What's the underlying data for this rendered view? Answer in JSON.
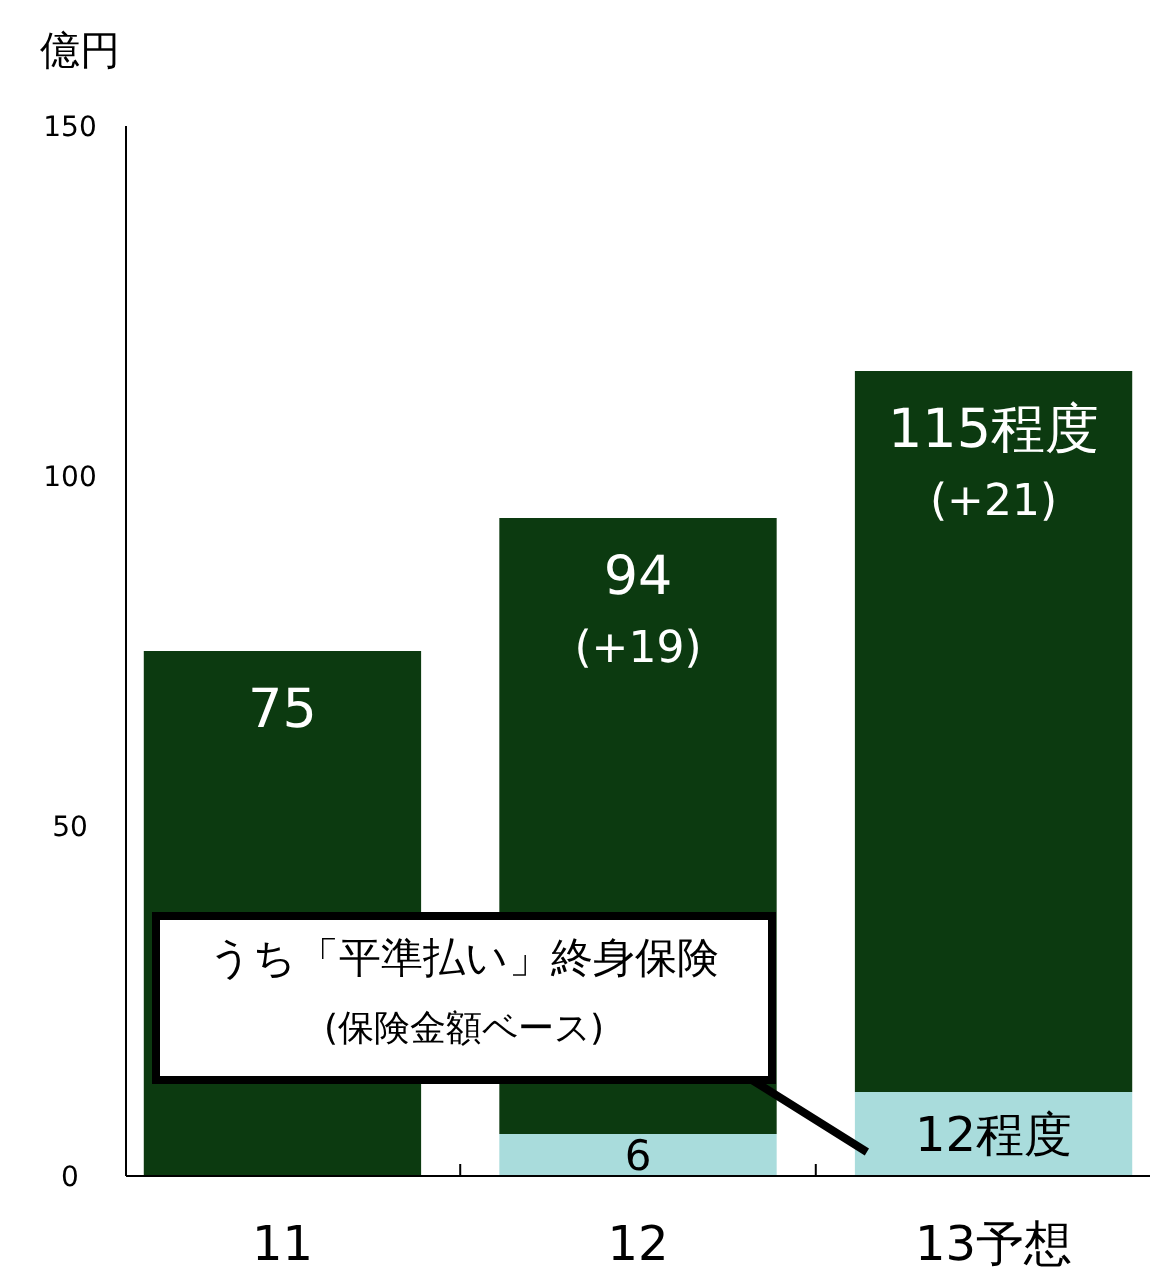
{
  "chart_data": {
    "type": "bar",
    "stacked": true,
    "ylabel": "億円",
    "categories": [
      "11",
      "12",
      "13予想"
    ],
    "ylim": [
      0,
      150
    ],
    "yticks": [
      0,
      50,
      100,
      150
    ],
    "series": [
      {
        "name": "うち「平準払い」終身保険 (保険金額ベース)",
        "color": "#a9dcdc",
        "values": [
          null,
          6,
          12
        ],
        "value_labels": [
          null,
          "6",
          "12程度"
        ]
      },
      {
        "color": "#0c3a10",
        "values": [
          75,
          88,
          103
        ]
      }
    ],
    "totals": [
      "75",
      "94",
      "115程度"
    ],
    "annotations": [
      "(+19)",
      "(+21)"
    ]
  }
}
